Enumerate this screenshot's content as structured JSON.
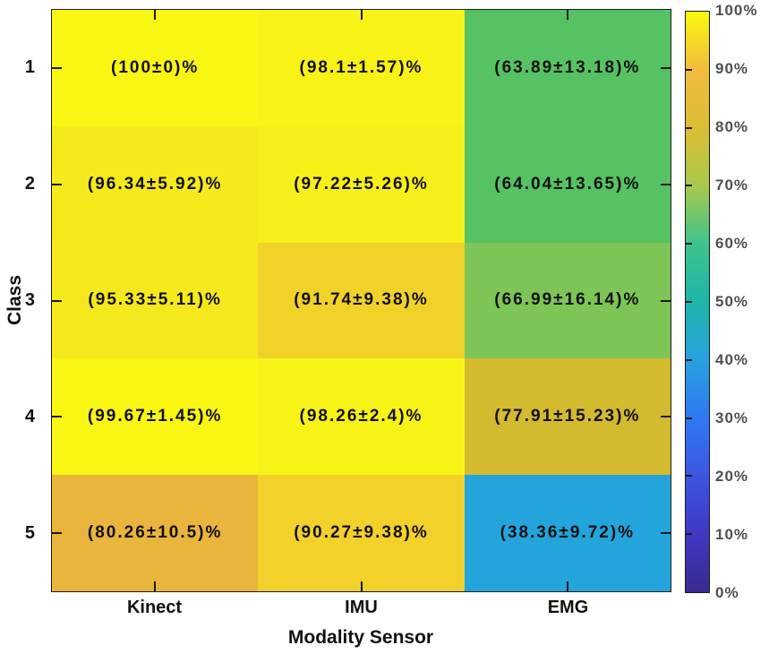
{
  "chart_data": {
    "type": "heatmap",
    "title": "",
    "xlabel": "Modality Sensor",
    "ylabel": "Class",
    "unit": "%",
    "x_categories": [
      "Kinect",
      "IMU",
      "EMG"
    ],
    "y_categories": [
      "1",
      "2",
      "3",
      "4",
      "5"
    ],
    "rows": [
      {
        "class": "1",
        "cells": [
          {
            "text": "(100±0)%",
            "mean": 100,
            "std": 0,
            "color": "#f9f614"
          },
          {
            "text": "(98.1±1.57)%",
            "mean": 98.1,
            "std": 1.57,
            "color": "#f8f216"
          },
          {
            "text": "(63.89±13.18)%",
            "mean": 63.89,
            "std": 13.18,
            "color": "#56c263"
          }
        ]
      },
      {
        "class": "2",
        "cells": [
          {
            "text": "(96.34±5.92)%",
            "mean": 96.34,
            "std": 5.92,
            "color": "#f4ea1c"
          },
          {
            "text": "(97.22±5.26)%",
            "mean": 97.22,
            "std": 5.26,
            "color": "#f7ef19"
          },
          {
            "text": "(64.04±13.65)%",
            "mean": 64.04,
            "std": 13.65,
            "color": "#57c264"
          }
        ]
      },
      {
        "class": "3",
        "cells": [
          {
            "text": "(95.33±5.11)%",
            "mean": 95.33,
            "std": 5.11,
            "color": "#f5e91d"
          },
          {
            "text": "(91.74±9.38)%",
            "mean": 91.74,
            "std": 9.38,
            "color": "#f0d229"
          },
          {
            "text": "(66.99±16.14)%",
            "mean": 66.99,
            "std": 16.14,
            "color": "#7dc556"
          }
        ]
      },
      {
        "class": "4",
        "cells": [
          {
            "text": "(99.67±1.45)%",
            "mean": 99.67,
            "std": 1.45,
            "color": "#f9f613"
          },
          {
            "text": "(98.26±2.4)%",
            "mean": 98.26,
            "std": 2.4,
            "color": "#f8f316"
          },
          {
            "text": "(77.91±15.23)%",
            "mean": 77.91,
            "std": 15.23,
            "color": "#d4ba2e"
          }
        ]
      },
      {
        "class": "5",
        "cells": [
          {
            "text": "(80.26±10.5)%",
            "mean": 80.26,
            "std": 10.5,
            "color": "#e9b53c"
          },
          {
            "text": "(90.27±9.38)%",
            "mean": 90.27,
            "std": 9.38,
            "color": "#f2d12b"
          },
          {
            "text": "(38.36±9.72)%",
            "mean": 38.36,
            "std": 9.72,
            "color": "#23a5dc"
          }
        ]
      }
    ],
    "colorbar": {
      "min": 0,
      "max": 100,
      "tick_labels": [
        "100%",
        "90%",
        "80%",
        "70%",
        "60%",
        "50%",
        "40%",
        "30%",
        "20%",
        "10%",
        "0%"
      ],
      "gradient_top_to_bottom": [
        "#f9f90e",
        "#f2bb3d",
        "#dcbc34",
        "#a8c94c",
        "#3ec38c",
        "#1eb4a9",
        "#28a2df",
        "#2f78f2",
        "#3c56e2",
        "#4038c1",
        "#382a8f"
      ]
    },
    "layout": {
      "grid": "off",
      "tick_direction": "in",
      "colorbar_position": "right"
    },
    "colors": {
      "axis": "#1a1a1a",
      "cell_text": "#111111",
      "colorbar_label_text": "#4f4f4f",
      "background": "#ffffff"
    }
  }
}
